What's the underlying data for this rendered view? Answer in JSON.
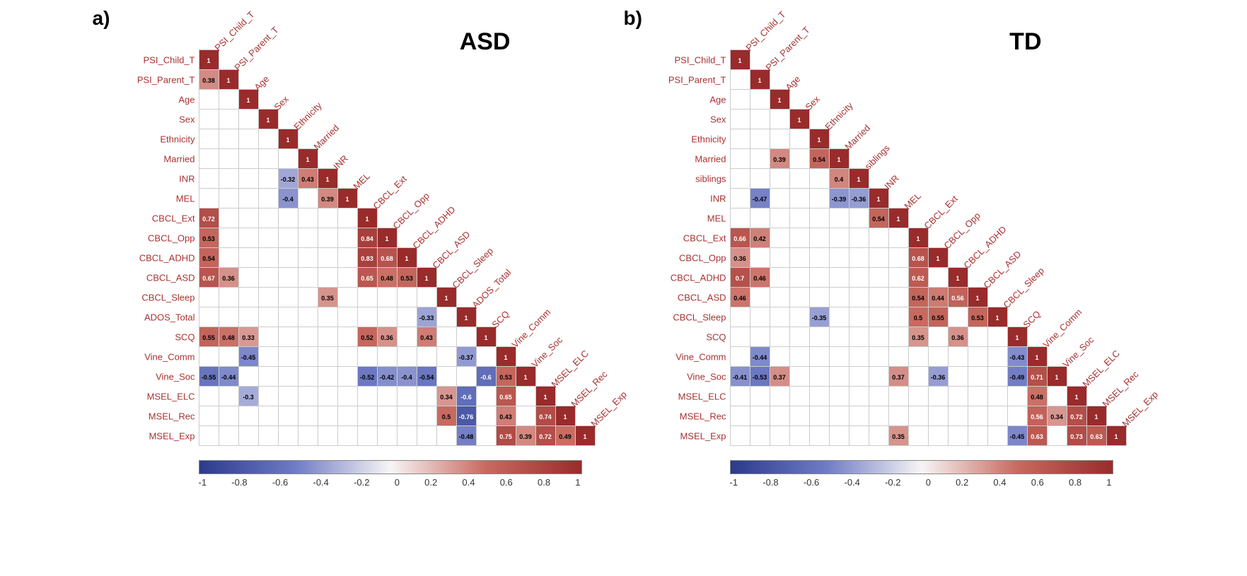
{
  "cell_size": 27,
  "label_fontsize": 13,
  "label_color": "#a83232",
  "title_fontsize": 34,
  "panel_label_fontsize": 28,
  "cell_text_fontsize": 9,
  "border_color": "#cccccc",
  "background": "#ffffff",
  "colorbar": {
    "min": -1,
    "max": 1,
    "ticks": [
      "-1",
      "-0.8",
      "-0.6",
      "-0.4",
      "-0.2",
      "0",
      "0.2",
      "0.4",
      "0.6",
      "0.8",
      "1"
    ],
    "gradient_stops": [
      {
        "p": 0,
        "c": "#2b3a8b"
      },
      {
        "p": 25,
        "c": "#6f7bc4"
      },
      {
        "p": 50,
        "c": "#f7f5f5"
      },
      {
        "p": 75,
        "c": "#c86a60"
      },
      {
        "p": 100,
        "c": "#992b2b"
      }
    ]
  },
  "panels": [
    {
      "id": "a",
      "label": "a)",
      "title": "ASD",
      "vars": [
        "PSI_Child_T",
        "PSI_Parent_T",
        "Age",
        "Sex",
        "Ethnicity",
        "Married",
        "INR",
        "MEL",
        "CBCL_Ext",
        "CBCL_Opp",
        "CBCL_ADHD",
        "CBCL_ASD",
        "CBCL_Sleep",
        "ADOS_Total",
        "SCQ",
        "Vine_Comm",
        "Vine_Soc",
        "MSEL_ELC",
        "MSEL_Rec",
        "MSEL_Exp"
      ],
      "cells": [
        {
          "r": 0,
          "c": 0,
          "v": 1
        },
        {
          "r": 1,
          "c": 0,
          "v": 0.38
        },
        {
          "r": 1,
          "c": 1,
          "v": 1
        },
        {
          "r": 2,
          "c": 2,
          "v": 1
        },
        {
          "r": 3,
          "c": 3,
          "v": 1
        },
        {
          "r": 4,
          "c": 4,
          "v": 1
        },
        {
          "r": 5,
          "c": 5,
          "v": 1
        },
        {
          "r": 6,
          "c": 4,
          "v": -0.32
        },
        {
          "r": 6,
          "c": 5,
          "v": 0.43
        },
        {
          "r": 6,
          "c": 6,
          "v": 1
        },
        {
          "r": 7,
          "c": 4,
          "v": -0.4
        },
        {
          "r": 7,
          "c": 6,
          "v": 0.39
        },
        {
          "r": 7,
          "c": 7,
          "v": 1
        },
        {
          "r": 8,
          "c": 0,
          "v": 0.72
        },
        {
          "r": 8,
          "c": 8,
          "v": 1
        },
        {
          "r": 9,
          "c": 0,
          "v": 0.53
        },
        {
          "r": 9,
          "c": 8,
          "v": 0.84
        },
        {
          "r": 9,
          "c": 9,
          "v": 1
        },
        {
          "r": 10,
          "c": 0,
          "v": 0.54
        },
        {
          "r": 10,
          "c": 8,
          "v": 0.83
        },
        {
          "r": 10,
          "c": 9,
          "v": 0.68
        },
        {
          "r": 10,
          "c": 10,
          "v": 1
        },
        {
          "r": 11,
          "c": 0,
          "v": 0.67
        },
        {
          "r": 11,
          "c": 1,
          "v": 0.36
        },
        {
          "r": 11,
          "c": 8,
          "v": 0.65
        },
        {
          "r": 11,
          "c": 9,
          "v": 0.48
        },
        {
          "r": 11,
          "c": 10,
          "v": 0.53
        },
        {
          "r": 11,
          "c": 11,
          "v": 1
        },
        {
          "r": 12,
          "c": 6,
          "v": 0.35
        },
        {
          "r": 12,
          "c": 12,
          "v": 1
        },
        {
          "r": 13,
          "c": 11,
          "v": -0.33
        },
        {
          "r": 13,
          "c": 13,
          "v": 1
        },
        {
          "r": 14,
          "c": 0,
          "v": 0.55
        },
        {
          "r": 14,
          "c": 1,
          "v": 0.48
        },
        {
          "r": 14,
          "c": 2,
          "v": 0.33
        },
        {
          "r": 14,
          "c": 8,
          "v": 0.52
        },
        {
          "r": 14,
          "c": 9,
          "v": 0.36
        },
        {
          "r": 14,
          "c": 11,
          "v": 0.43
        },
        {
          "r": 14,
          "c": 14,
          "v": 1
        },
        {
          "r": 15,
          "c": 2,
          "v": -0.45
        },
        {
          "r": 15,
          "c": 13,
          "v": -0.37
        },
        {
          "r": 15,
          "c": 15,
          "v": 1
        },
        {
          "r": 16,
          "c": 0,
          "v": -0.55
        },
        {
          "r": 16,
          "c": 1,
          "v": -0.44
        },
        {
          "r": 16,
          "c": 8,
          "v": -0.52
        },
        {
          "r": 16,
          "c": 9,
          "v": -0.42
        },
        {
          "r": 16,
          "c": 10,
          "v": -0.4
        },
        {
          "r": 16,
          "c": 11,
          "v": -0.54
        },
        {
          "r": 16,
          "c": 14,
          "v": -0.6
        },
        {
          "r": 16,
          "c": 15,
          "v": 0.53
        },
        {
          "r": 16,
          "c": 16,
          "v": 1
        },
        {
          "r": 17,
          "c": 2,
          "v": -0.3
        },
        {
          "r": 17,
          "c": 12,
          "v": 0.34
        },
        {
          "r": 17,
          "c": 13,
          "v": -0.6
        },
        {
          "r": 17,
          "c": 15,
          "v": 0.65
        },
        {
          "r": 17,
          "c": 17,
          "v": 1
        },
        {
          "r": 18,
          "c": 12,
          "v": 0.5
        },
        {
          "r": 18,
          "c": 13,
          "v": -0.76
        },
        {
          "r": 18,
          "c": 15,
          "v": 0.43
        },
        {
          "r": 18,
          "c": 17,
          "v": 0.74
        },
        {
          "r": 18,
          "c": 18,
          "v": 1
        },
        {
          "r": 19,
          "c": 13,
          "v": -0.48
        },
        {
          "r": 19,
          "c": 15,
          "v": 0.75
        },
        {
          "r": 19,
          "c": 16,
          "v": 0.39
        },
        {
          "r": 19,
          "c": 17,
          "v": 0.72
        },
        {
          "r": 19,
          "c": 18,
          "v": 0.49
        },
        {
          "r": 19,
          "c": 19,
          "v": 1
        }
      ]
    },
    {
      "id": "b",
      "label": "b)",
      "title": "TD",
      "vars": [
        "PSI_Child_T",
        "PSI_Parent_T",
        "Age",
        "Sex",
        "Ethnicity",
        "Married",
        "siblings",
        "INR",
        "MEL",
        "CBCL_Ext",
        "CBCL_Opp",
        "CBCL_ADHD",
        "CBCL_ASD",
        "CBCL_Sleep",
        "SCQ",
        "Vine_Comm",
        "Vine_Soc",
        "MSEL_ELC",
        "MSEL_Rec",
        "MSEL_Exp"
      ],
      "cells": [
        {
          "r": 0,
          "c": 0,
          "v": 1
        },
        {
          "r": 1,
          "c": 1,
          "v": 1
        },
        {
          "r": 2,
          "c": 2,
          "v": 1
        },
        {
          "r": 3,
          "c": 3,
          "v": 1
        },
        {
          "r": 4,
          "c": 4,
          "v": 1
        },
        {
          "r": 5,
          "c": 2,
          "v": 0.39
        },
        {
          "r": 5,
          "c": 4,
          "v": 0.54
        },
        {
          "r": 5,
          "c": 5,
          "v": 1
        },
        {
          "r": 6,
          "c": 5,
          "v": 0.4
        },
        {
          "r": 6,
          "c": 6,
          "v": 1
        },
        {
          "r": 7,
          "c": 1,
          "v": -0.47
        },
        {
          "r": 7,
          "c": 5,
          "v": -0.39
        },
        {
          "r": 7,
          "c": 6,
          "v": -0.36
        },
        {
          "r": 7,
          "c": 7,
          "v": 1
        },
        {
          "r": 8,
          "c": 7,
          "v": 0.54
        },
        {
          "r": 8,
          "c": 8,
          "v": 1
        },
        {
          "r": 9,
          "c": 0,
          "v": 0.66
        },
        {
          "r": 9,
          "c": 1,
          "v": 0.42
        },
        {
          "r": 9,
          "c": 9,
          "v": 1
        },
        {
          "r": 10,
          "c": 0,
          "v": 0.36
        },
        {
          "r": 10,
          "c": 9,
          "v": 0.68
        },
        {
          "r": 10,
          "c": 10,
          "v": 1
        },
        {
          "r": 11,
          "c": 0,
          "v": 0.7
        },
        {
          "r": 11,
          "c": 1,
          "v": 0.46
        },
        {
          "r": 11,
          "c": 9,
          "v": 0.62
        },
        {
          "r": 11,
          "c": 11,
          "v": 1
        },
        {
          "r": 12,
          "c": 0,
          "v": 0.46
        },
        {
          "r": 12,
          "c": 9,
          "v": 0.54
        },
        {
          "r": 12,
          "c": 10,
          "v": 0.44
        },
        {
          "r": 12,
          "c": 11,
          "v": 0.56
        },
        {
          "r": 12,
          "c": 12,
          "v": 1
        },
        {
          "r": 13,
          "c": 4,
          "v": -0.35
        },
        {
          "r": 13,
          "c": 9,
          "v": 0.5
        },
        {
          "r": 13,
          "c": 10,
          "v": 0.55
        },
        {
          "r": 13,
          "c": 12,
          "v": 0.53
        },
        {
          "r": 13,
          "c": 13,
          "v": 1
        },
        {
          "r": 14,
          "c": 9,
          "v": 0.35
        },
        {
          "r": 14,
          "c": 11,
          "v": 0.36
        },
        {
          "r": 14,
          "c": 14,
          "v": 1
        },
        {
          "r": 15,
          "c": 1,
          "v": -0.44
        },
        {
          "r": 15,
          "c": 14,
          "v": -0.43
        },
        {
          "r": 15,
          "c": 15,
          "v": 1
        },
        {
          "r": 16,
          "c": 0,
          "v": -0.41
        },
        {
          "r": 16,
          "c": 1,
          "v": -0.53
        },
        {
          "r": 16,
          "c": 2,
          "v": 0.37
        },
        {
          "r": 16,
          "c": 8,
          "v": 0.37
        },
        {
          "r": 16,
          "c": 10,
          "v": -0.36
        },
        {
          "r": 16,
          "c": 14,
          "v": -0.49
        },
        {
          "r": 16,
          "c": 15,
          "v": 0.71
        },
        {
          "r": 16,
          "c": 16,
          "v": 1
        },
        {
          "r": 17,
          "c": 15,
          "v": 0.48
        },
        {
          "r": 17,
          "c": 17,
          "v": 1
        },
        {
          "r": 18,
          "c": 15,
          "v": 0.56
        },
        {
          "r": 18,
          "c": 16,
          "v": 0.34
        },
        {
          "r": 18,
          "c": 17,
          "v": 0.72
        },
        {
          "r": 18,
          "c": 18,
          "v": 1
        },
        {
          "r": 19,
          "c": 8,
          "v": 0.35
        },
        {
          "r": 19,
          "c": 14,
          "v": -0.45
        },
        {
          "r": 19,
          "c": 15,
          "v": 0.63
        },
        {
          "r": 19,
          "c": 17,
          "v": 0.73
        },
        {
          "r": 19,
          "c": 18,
          "v": 0.63
        },
        {
          "r": 19,
          "c": 19,
          "v": 1
        }
      ]
    }
  ]
}
